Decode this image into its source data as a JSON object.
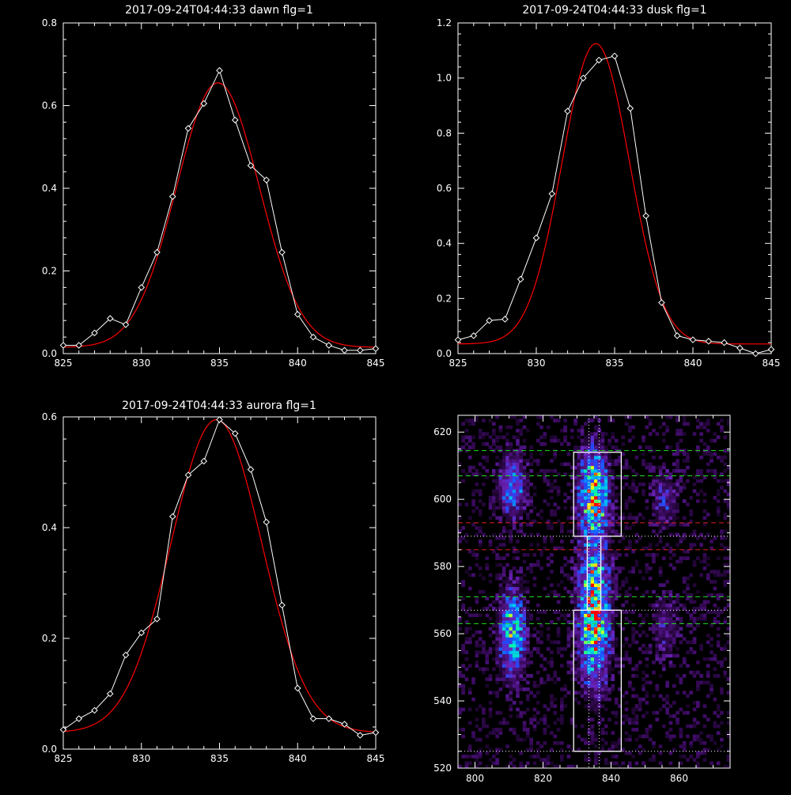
{
  "chart_data": [
    {
      "type": "line",
      "title": "2017-09-24T04:44:33 dawn flg=1",
      "xlim": [
        825,
        845
      ],
      "ylim": [
        0,
        0.8
      ],
      "xticks": [
        825,
        830,
        835,
        840,
        845
      ],
      "yticks": [
        0.0,
        0.2,
        0.4,
        0.6,
        0.8
      ],
      "ytick_labels": [
        "0.0",
        "0.2",
        "0.4",
        "0.6",
        "0.8"
      ],
      "series": [
        {
          "kind": "data",
          "color": "#ffffff",
          "marker": "diamond",
          "x": [
            825,
            826,
            827,
            828,
            829,
            830,
            831,
            832,
            833,
            834,
            835,
            836,
            837,
            838,
            839,
            840,
            841,
            842,
            843,
            844,
            845
          ],
          "y": [
            0.02,
            0.02,
            0.05,
            0.085,
            0.07,
            0.16,
            0.245,
            0.38,
            0.545,
            0.605,
            0.685,
            0.565,
            0.455,
            0.42,
            0.245,
            0.095,
            0.04,
            0.02,
            0.008,
            0.008,
            0.012
          ]
        },
        {
          "kind": "fit",
          "color": "#ff0000",
          "amp": 0.64,
          "center": 834.9,
          "sigma": 2.65,
          "base": 0.015
        }
      ]
    },
    {
      "type": "line",
      "title": "2017-09-24T04:44:33 dusk flg=1",
      "xlim": [
        825,
        845
      ],
      "ylim": [
        0,
        1.2
      ],
      "xticks": [
        825,
        830,
        835,
        840,
        845
      ],
      "yticks": [
        0.0,
        0.2,
        0.4,
        0.6,
        0.8,
        1.0,
        1.2
      ],
      "ytick_labels": [
        "0.0",
        "0.2",
        "0.4",
        "0.6",
        "0.8",
        "1.0",
        "1.2"
      ],
      "series": [
        {
          "kind": "data",
          "color": "#ffffff",
          "marker": "diamond",
          "x": [
            825,
            826,
            827,
            828,
            829,
            830,
            831,
            832,
            833,
            834,
            835,
            836,
            837,
            838,
            839,
            840,
            841,
            842,
            843,
            844,
            845
          ],
          "y": [
            0.05,
            0.065,
            0.12,
            0.125,
            0.27,
            0.42,
            0.58,
            0.88,
            1.0,
            1.065,
            1.08,
            0.89,
            0.5,
            0.185,
            0.065,
            0.05,
            0.045,
            0.04,
            0.02,
            0.0,
            0.015
          ]
        },
        {
          "kind": "fit",
          "color": "#ff0000",
          "amp": 1.09,
          "center": 833.8,
          "sigma": 2.15,
          "base": 0.035
        }
      ]
    },
    {
      "type": "line",
      "title": "2017-09-24T04:44:33 aurora flg=1",
      "xlim": [
        825,
        845
      ],
      "ylim": [
        0,
        0.6
      ],
      "xticks": [
        825,
        830,
        835,
        840,
        845
      ],
      "yticks": [
        0.0,
        0.2,
        0.4,
        0.6
      ],
      "ytick_labels": [
        "0.0",
        "0.2",
        "0.4",
        "0.6"
      ],
      "series": [
        {
          "kind": "data",
          "color": "#ffffff",
          "marker": "diamond",
          "x": [
            825,
            826,
            827,
            828,
            829,
            830,
            831,
            832,
            833,
            834,
            835,
            836,
            837,
            838,
            839,
            840,
            841,
            842,
            843,
            844,
            845
          ],
          "y": [
            0.035,
            0.055,
            0.07,
            0.1,
            0.17,
            0.21,
            0.235,
            0.42,
            0.495,
            0.52,
            0.595,
            0.57,
            0.505,
            0.41,
            0.26,
            0.11,
            0.055,
            0.055,
            0.045,
            0.025,
            0.03
          ]
        },
        {
          "kind": "fit",
          "color": "#ff0000",
          "amp": 0.565,
          "center": 834.8,
          "sigma": 2.9,
          "base": 0.03
        }
      ]
    },
    {
      "type": "heatmap",
      "title": "",
      "xlim": [
        795,
        875
      ],
      "ylim": [
        520,
        625
      ],
      "xticks": [
        800,
        820,
        840,
        860
      ],
      "yticks": [
        520,
        540,
        560,
        580,
        600,
        620
      ],
      "colorscale": [
        "#000000",
        "#3a0a5e",
        "#6a22b8",
        "#1e4cff",
        "#00b4ff",
        "#00ffa0",
        "#ffff00",
        "#ff0000"
      ],
      "emission_columns": [
        {
          "center": 811,
          "halfwidth": 2.6
        },
        {
          "center": 835,
          "halfwidth": 2.9
        },
        {
          "center": 856,
          "halfwidth": 2.6
        }
      ],
      "emission_bands": [
        {
          "column": 0,
          "y_center": 604,
          "y_sigma": 6,
          "amp": 0.45
        },
        {
          "column": 0,
          "y_center": 560,
          "y_sigma": 9,
          "amp": 0.55
        },
        {
          "column": 1,
          "y_center": 601,
          "y_sigma": 9,
          "amp": 0.75
        },
        {
          "column": 1,
          "y_center": 563,
          "y_sigma": 12,
          "amp": 0.75
        },
        {
          "column": 1,
          "y_center": 578,
          "y_sigma": 6,
          "amp": 0.2
        },
        {
          "column": 2,
          "y_center": 600,
          "y_sigma": 6,
          "amp": 0.22
        },
        {
          "column": 2,
          "y_center": 562,
          "y_sigma": 7,
          "amp": 0.18
        }
      ],
      "green_dashed_y": [
        614.5,
        607,
        571,
        563
      ],
      "red_dashed_y": [
        593,
        585
      ],
      "white_dotted_y": [
        589,
        567,
        525
      ],
      "white_dotted_x": [
        833.5,
        836.5
      ],
      "boxes": [
        {
          "x0": 829,
          "x1": 843,
          "y0": 589,
          "y1": 614
        },
        {
          "x0": 829,
          "x1": 843,
          "y0": 525,
          "y1": 567
        }
      ],
      "connector_x": [
        833,
        837
      ]
    }
  ]
}
